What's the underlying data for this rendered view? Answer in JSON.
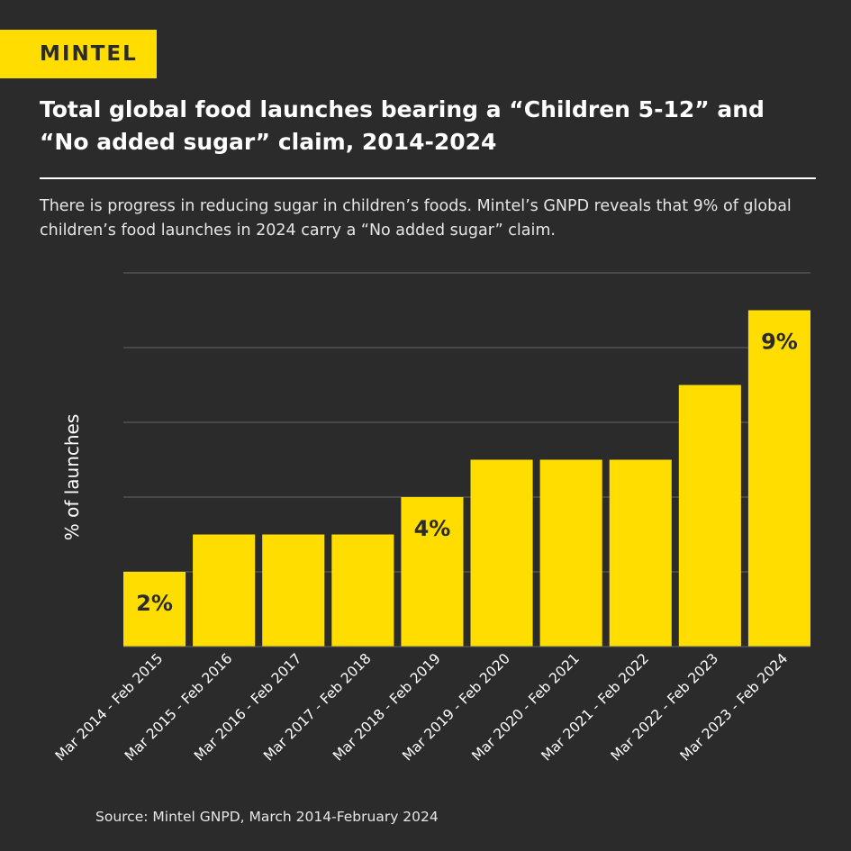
{
  "logo": {
    "text": "MINTEL"
  },
  "title": "Total global food launches bearing a “Children 5-12” and “No added sugar” claim, 2014-2024",
  "subtitle": "There is progress in reducing sugar in children’s foods. Mintel’s GNPD reveals that 9% of global children’s food launches in 2024 carry a “No added sugar” claim.",
  "source": "Source: Mintel GNPD, March 2014-February 2024",
  "colors": {
    "background": "#2b2b2b",
    "bar": "#ffdd00",
    "grid": "#666666"
  },
  "chart_data": {
    "type": "bar",
    "title": "Total global food launches bearing a “Children 5-12” and “No added sugar” claim, 2014-2024",
    "xlabel": "",
    "ylabel": "% of launches",
    "ylim": [
      0,
      10
    ],
    "yticks": [
      0,
      2,
      4,
      6,
      8,
      10
    ],
    "grid": true,
    "categories": [
      "Mar 2014 - Feb 2015",
      "Mar 2015 - Feb 2016",
      "Mar 2016 - Feb 2017",
      "Mar 2017 - Feb 2018",
      "Mar 2018 - Feb 2019",
      "Mar 2019 - Feb 2020",
      "Mar 2020 - Feb 2021",
      "Mar 2021 - Feb 2022",
      "Mar 2022 - Feb 2023",
      "Mar 2023 - Feb 2024"
    ],
    "values": [
      2,
      3,
      3,
      3,
      4,
      5,
      5,
      5,
      7,
      9
    ],
    "data_labels": [
      "2%",
      "",
      "",
      "",
      "4%",
      "",
      "",
      "",
      "",
      "9%"
    ]
  }
}
